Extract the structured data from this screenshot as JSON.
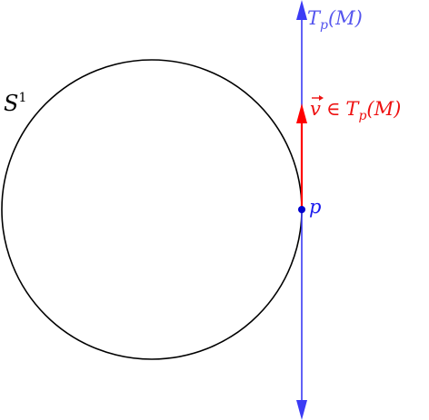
{
  "labels": {
    "circle": "S",
    "circle_sup": "1",
    "tangent_space": "T",
    "tangent_space_sub": "p",
    "tangent_space_arg": "(M)",
    "vector_head": "v",
    "vector_rel": "∈",
    "vector_space": "T",
    "vector_space_sub": "p",
    "vector_space_arg": "(M)",
    "point": "p"
  },
  "colors": {
    "circle": "#000000",
    "tangent_line": "#3b3bf5",
    "vector": "#ff0000",
    "point": "#0000cc",
    "tangent_label": "#5555ee",
    "vector_label": "#ee1111",
    "point_label": "#1a1aee",
    "circle_label": "#000000"
  },
  "icons": {
    "vector_arrow": "arrow-over-v"
  }
}
